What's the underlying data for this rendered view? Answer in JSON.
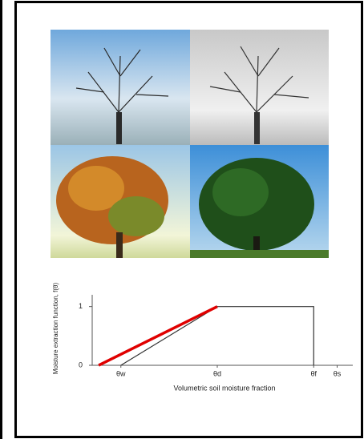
{
  "chart_data": {
    "type": "line",
    "ylabel": "Moisture extraction function, f(θ)",
    "xlabel": "Volumetric soil moisture fraction",
    "xlim": [
      0,
      1
    ],
    "ylim": [
      0,
      1.2
    ],
    "xticks": [
      {
        "value": 0.11,
        "label": "θw"
      },
      {
        "value": 0.48,
        "label": "θd"
      },
      {
        "value": 0.85,
        "label": "θf"
      },
      {
        "value": 0.94,
        "label": "θs"
      }
    ],
    "yticks": [
      0,
      1
    ],
    "series": [
      {
        "color": "#333333",
        "x": [
          0.11,
          0.48,
          0.85,
          0.85
        ],
        "values": [
          0,
          1,
          1,
          0
        ]
      },
      {
        "color": "#e00000",
        "x": [
          0.025,
          0.48
        ],
        "values": [
          0,
          1
        ]
      }
    ]
  }
}
